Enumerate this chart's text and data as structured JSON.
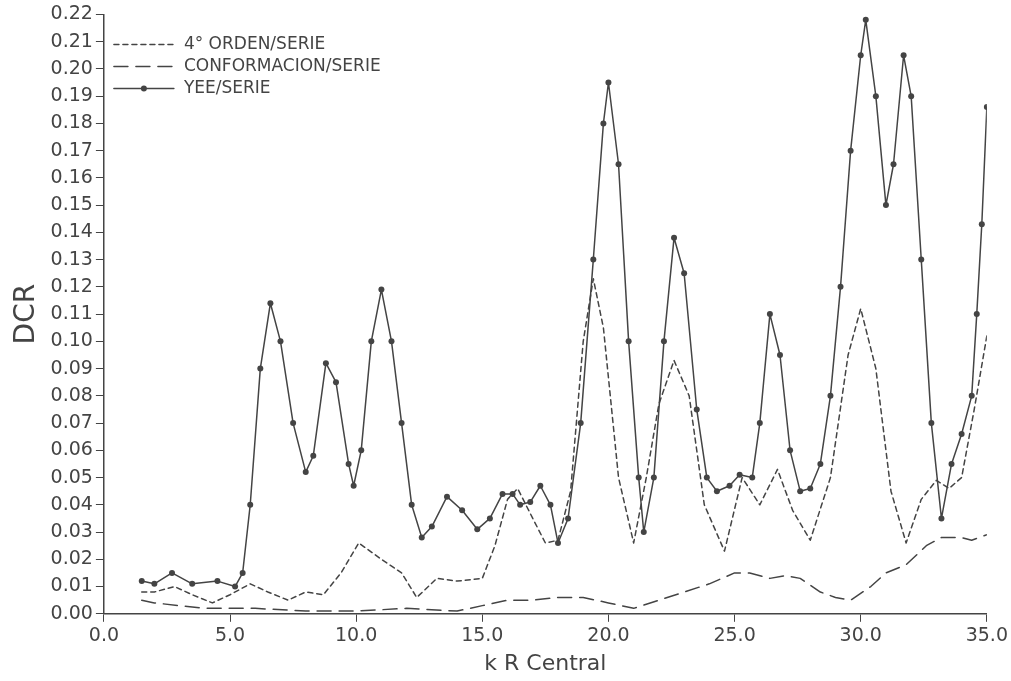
{
  "chart_data": {
    "type": "line",
    "xlabel": "k R Central",
    "ylabel": "DCR",
    "legend": "top left",
    "grid": false,
    "xlim": [
      0,
      35
    ],
    "xticks": [
      {
        "value": 0,
        "label": "0.0"
      },
      {
        "value": 5,
        "label": "5.0"
      },
      {
        "value": 10,
        "label": "10.0"
      },
      {
        "value": 15,
        "label": "15.0"
      },
      {
        "value": 20,
        "label": "20.0"
      },
      {
        "value": 25,
        "label": "25.0"
      },
      {
        "value": 30,
        "label": "30.0"
      },
      {
        "value": 35,
        "label": "35.0"
      }
    ],
    "ylim": [
      0,
      0.22
    ],
    "yticks": [
      {
        "value": 0,
        "label": "0.00"
      },
      {
        "value": 0.01,
        "label": "0.01"
      },
      {
        "value": 0.02,
        "label": "0.02"
      },
      {
        "value": 0.03,
        "label": "0.03"
      },
      {
        "value": 0.04,
        "label": "0.04"
      },
      {
        "value": 0.05,
        "label": "0.05"
      },
      {
        "value": 0.06,
        "label": "0.06"
      },
      {
        "value": 0.07,
        "label": "0.07"
      },
      {
        "value": 0.08,
        "label": "0.08"
      },
      {
        "value": 0.09,
        "label": "0.09"
      },
      {
        "value": 0.1,
        "label": "0.10"
      },
      {
        "value": 0.11,
        "label": "0.11"
      },
      {
        "value": 0.12,
        "label": "0.12"
      },
      {
        "value": 0.13,
        "label": "0.13"
      },
      {
        "value": 0.14,
        "label": "0.14"
      },
      {
        "value": 0.15,
        "label": "0.15"
      },
      {
        "value": 0.16,
        "label": "0.16"
      },
      {
        "value": 0.17,
        "label": "0.17"
      },
      {
        "value": 0.18,
        "label": "0.18"
      },
      {
        "value": 0.19,
        "label": "0.19"
      },
      {
        "value": 0.2,
        "label": "0.20"
      },
      {
        "value": 0.21,
        "label": "0.21"
      },
      {
        "value": 0.22,
        "label": "0.22"
      }
    ],
    "series": [
      {
        "name": "4° ORDEN/SERIE",
        "color": "#444444",
        "line_style": "dotted",
        "marker": "none",
        "x": [
          1.5,
          2.0,
          2.8,
          3.5,
          4.3,
          5.0,
          5.8,
          6.5,
          7.3,
          8.0,
          8.7,
          9.4,
          10.1,
          11.0,
          11.8,
          12.4,
          13.2,
          14.0,
          15.0,
          15.5,
          16.0,
          16.4,
          17.0,
          17.5,
          18.0,
          18.5,
          19.0,
          19.4,
          19.8,
          20.4,
          21.0,
          21.5,
          22.0,
          22.6,
          23.2,
          23.8,
          24.6,
          25.3,
          26.0,
          26.7,
          27.3,
          28.0,
          28.8,
          29.5,
          30.0,
          30.6,
          31.2,
          31.8,
          32.4,
          33.0,
          33.5,
          34.0,
          34.5,
          35.0
        ],
        "values": [
          0.008,
          0.008,
          0.01,
          0.007,
          0.004,
          0.007,
          0.011,
          0.008,
          0.005,
          0.008,
          0.007,
          0.015,
          0.026,
          0.02,
          0.015,
          0.006,
          0.013,
          0.012,
          0.013,
          0.025,
          0.042,
          0.046,
          0.035,
          0.026,
          0.027,
          0.045,
          0.1,
          0.123,
          0.105,
          0.05,
          0.026,
          0.05,
          0.077,
          0.093,
          0.08,
          0.04,
          0.023,
          0.05,
          0.04,
          0.053,
          0.038,
          0.027,
          0.05,
          0.095,
          0.112,
          0.09,
          0.045,
          0.026,
          0.042,
          0.049,
          0.046,
          0.05,
          0.075,
          0.102
        ]
      },
      {
        "name": "CONFORMACION/SERIE",
        "color": "#444444",
        "line_style": "dashed",
        "marker": "none",
        "x": [
          1.5,
          2.0,
          3.0,
          4.0,
          6.0,
          8.0,
          10.0,
          12.0,
          14.0,
          15.0,
          16.0,
          17.0,
          18.0,
          19.0,
          20.0,
          21.0,
          22.0,
          23.0,
          24.0,
          25.0,
          25.6,
          26.4,
          27.0,
          27.6,
          28.4,
          29.0,
          29.6,
          30.4,
          31.0,
          31.8,
          32.6,
          33.2,
          34.0,
          34.4,
          35.0
        ],
        "values": [
          0.005,
          0.004,
          0.003,
          0.002,
          0.002,
          0.001,
          0.001,
          0.002,
          0.001,
          0.003,
          0.005,
          0.005,
          0.006,
          0.006,
          0.004,
          0.002,
          0.005,
          0.008,
          0.011,
          0.015,
          0.015,
          0.013,
          0.014,
          0.013,
          0.008,
          0.006,
          0.005,
          0.01,
          0.015,
          0.018,
          0.025,
          0.028,
          0.028,
          0.027,
          0.029
        ]
      },
      {
        "name": "YEE/SERIE",
        "color": "#444444",
        "line_style": "solid",
        "marker": "circle",
        "x": [
          1.5,
          2.0,
          2.7,
          3.5,
          4.5,
          5.2,
          5.5,
          5.8,
          6.2,
          6.6,
          7.0,
          7.5,
          8.0,
          8.3,
          8.8,
          9.2,
          9.7,
          9.9,
          10.2,
          10.6,
          11.0,
          11.4,
          11.8,
          12.2,
          12.6,
          13.0,
          13.6,
          14.2,
          14.8,
          15.3,
          15.8,
          16.2,
          16.5,
          16.9,
          17.3,
          17.7,
          18.0,
          18.4,
          18.9,
          19.4,
          19.8,
          20.0,
          20.4,
          20.8,
          21.2,
          21.4,
          21.8,
          22.2,
          22.6,
          23.0,
          23.5,
          23.9,
          24.3,
          24.8,
          25.2,
          25.7,
          26.0,
          26.4,
          26.8,
          27.2,
          27.6,
          28.0,
          28.4,
          28.8,
          29.2,
          29.6,
          30.0,
          30.2,
          30.6,
          31.0,
          31.3,
          31.7,
          32.0,
          32.4,
          32.8,
          33.2,
          33.6,
          34.0,
          34.4,
          34.6,
          34.8,
          35.0
        ],
        "values": [
          0.012,
          0.011,
          0.015,
          0.011,
          0.012,
          0.01,
          0.015,
          0.04,
          0.09,
          0.114,
          0.1,
          0.07,
          0.052,
          0.058,
          0.092,
          0.085,
          0.055,
          0.047,
          0.06,
          0.1,
          0.119,
          0.1,
          0.07,
          0.04,
          0.028,
          0.032,
          0.043,
          0.038,
          0.031,
          0.035,
          0.044,
          0.044,
          0.04,
          0.041,
          0.047,
          0.04,
          0.026,
          0.035,
          0.07,
          0.13,
          0.18,
          0.195,
          0.165,
          0.1,
          0.05,
          0.03,
          0.05,
          0.1,
          0.138,
          0.125,
          0.075,
          0.05,
          0.045,
          0.047,
          0.051,
          0.05,
          0.07,
          0.11,
          0.095,
          0.06,
          0.045,
          0.046,
          0.055,
          0.08,
          0.12,
          0.17,
          0.205,
          0.218,
          0.19,
          0.15,
          0.165,
          0.205,
          0.19,
          0.13,
          0.07,
          0.035,
          0.055,
          0.066,
          0.08,
          0.11,
          0.143,
          0.186
        ]
      }
    ]
  }
}
